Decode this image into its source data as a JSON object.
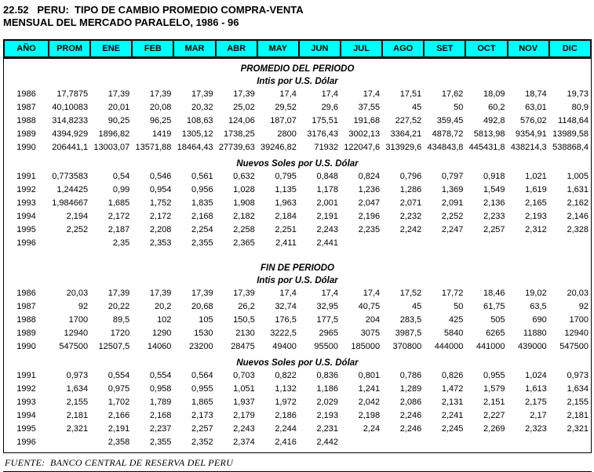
{
  "title": {
    "line1": "22.52   PERU:  TIPO DE CAMBIO PROMEDIO COMPRA-VENTA",
    "line2": "MENSUAL DEL MERCADO PARALELO, 1986 - 96"
  },
  "table": {
    "columns": [
      "AÑO",
      "PROM",
      "ENE",
      "FEB",
      "MAR",
      "ABR",
      "MAY",
      "JUN",
      "JUL",
      "AGO",
      "SET",
      "OCT",
      "NOV",
      "DIC"
    ],
    "sections": [
      {
        "heading": "PROMEDIO DEL PERIODO",
        "subheading": "Intis por U.S. Dólar",
        "rows": [
          {
            "year": "1986",
            "values": [
              "17,7875",
              "17,39",
              "17,39",
              "17,39",
              "17,39",
              "17,4",
              "17,4",
              "17,4",
              "17,51",
              "17,62",
              "18,09",
              "18,74",
              "19,73"
            ]
          },
          {
            "year": "1987",
            "values": [
              "40,10083",
              "20,01",
              "20,08",
              "20,32",
              "25,02",
              "29,52",
              "29,6",
              "37,55",
              "45",
              "50",
              "60,2",
              "63,01",
              "80,9"
            ]
          },
          {
            "year": "1988",
            "values": [
              "314,8233",
              "90,25",
              "96,25",
              "108,63",
              "124,06",
              "187,07",
              "175,51",
              "191,68",
              "227,52",
              "359,45",
              "492,8",
              "576,02",
              "1148,64"
            ]
          },
          {
            "year": "1989",
            "values": [
              "4394,929",
              "1896,82",
              "1419",
              "1305,12",
              "1738,25",
              "2800",
              "3176,43",
              "3002,13",
              "3364,21",
              "4878,72",
              "5813,98",
              "9354,91",
              "13989,58"
            ]
          },
          {
            "year": "1990",
            "values": [
              "206441,1",
              "13003,07",
              "13571,88",
              "18464,43",
              "27739,63",
              "39246,82",
              "71932",
              "122047,6",
              "313929,6",
              "434843,8",
              "445431,8",
              "438214,3",
              "538868,4"
            ]
          }
        ]
      },
      {
        "heading": "",
        "subheading": "Nuevos Soles por U.S. Dólar",
        "rows": [
          {
            "year": "1991",
            "values": [
              "0,773583",
              "0,54",
              "0,546",
              "0,561",
              "0,632",
              "0,795",
              "0,848",
              "0,824",
              "0,796",
              "0,797",
              "0,918",
              "1,021",
              "1,005"
            ]
          },
          {
            "year": "1992",
            "values": [
              "1,24425",
              "0,99",
              "0,954",
              "0,956",
              "1,028",
              "1,135",
              "1,178",
              "1,236",
              "1,286",
              "1,369",
              "1,549",
              "1,619",
              "1,631"
            ]
          },
          {
            "year": "1993",
            "values": [
              "1,984667",
              "1,685",
              "1,752",
              "1,835",
              "1,908",
              "1,963",
              "2,001",
              "2,047",
              "2,071",
              "2,091",
              "2,136",
              "2,165",
              "2,162"
            ]
          },
          {
            "year": "1994",
            "values": [
              "2,194",
              "2,172",
              "2,172",
              "2,168",
              "2,182",
              "2,184",
              "2,191",
              "2,196",
              "2,232",
              "2,252",
              "2,233",
              "2,193",
              "2,146"
            ]
          },
          {
            "year": "1995",
            "values": [
              "2,252",
              "2,187",
              "2,208",
              "2,254",
              "2,258",
              "2,251",
              "2,243",
              "2,235",
              "2,242",
              "2,247",
              "2,257",
              "2,312",
              "2,328"
            ]
          },
          {
            "year": "1996",
            "values": [
              "",
              "2,35",
              "2,353",
              "2,355",
              "2,365",
              "2,411",
              "2,441",
              "",
              "",
              "",
              "",
              "",
              ""
            ]
          }
        ]
      },
      {
        "heading": "FIN DE PERIODO",
        "subheading": "Intis por U.S. Dólar",
        "rows": [
          {
            "year": "1986",
            "values": [
              "20,03",
              "17,39",
              "17,39",
              "17,39",
              "17,39",
              "17,4",
              "17,4",
              "17,4",
              "17,52",
              "17,72",
              "18,46",
              "19,02",
              "20,03"
            ]
          },
          {
            "year": "1987",
            "values": [
              "92",
              "20,22",
              "20,2",
              "20,68",
              "26,2",
              "32,74",
              "32,95",
              "40,75",
              "45",
              "50",
              "61,75",
              "63,5",
              "92"
            ]
          },
          {
            "year": "1988",
            "values": [
              "1700",
              "89,5",
              "102",
              "105",
              "150,5",
              "176,5",
              "177,5",
              "204",
              "283,5",
              "425",
              "505",
              "690",
              "1700"
            ]
          },
          {
            "year": "1989",
            "values": [
              "12940",
              "1720",
              "1290",
              "1530",
              "2130",
              "3222,5",
              "2965",
              "3075",
              "3987,5",
              "5840",
              "6265",
              "11880",
              "12940"
            ]
          },
          {
            "year": "1990",
            "values": [
              "547500",
              "12507,5",
              "14060",
              "23200",
              "28475",
              "49400",
              "95500",
              "185000",
              "370800",
              "444000",
              "441000",
              "439000",
              "547500"
            ]
          }
        ]
      },
      {
        "heading": "",
        "subheading": "Nuevos Soles por U.S. Dólar",
        "rows": [
          {
            "year": "1991",
            "values": [
              "0,973",
              "0,554",
              "0,554",
              "0,564",
              "0,703",
              "0,822",
              "0,836",
              "0,801",
              "0,786",
              "0,826",
              "0,955",
              "1,024",
              "0,973"
            ]
          },
          {
            "year": "1992",
            "values": [
              "1,634",
              "0,975",
              "0,958",
              "0,955",
              "1,051",
              "1,132",
              "1,186",
              "1,241",
              "1,289",
              "1,472",
              "1,579",
              "1,613",
              "1,634"
            ]
          },
          {
            "year": "1993",
            "values": [
              "2,155",
              "1,702",
              "1,789",
              "1,865",
              "1,937",
              "1,972",
              "2,029",
              "2,042",
              "2,086",
              "2,131",
              "2,151",
              "2,175",
              "2,155"
            ]
          },
          {
            "year": "1994",
            "values": [
              "2,181",
              "2,166",
              "2,168",
              "2,173",
              "2,179",
              "2,186",
              "2,193",
              "2,198",
              "2,246",
              "2,241",
              "2,227",
              "2,17",
              "2,181"
            ]
          },
          {
            "year": "1995",
            "values": [
              "2,321",
              "2,191",
              "2,237",
              "2,257",
              "2,243",
              "2,244",
              "2,231",
              "2,24",
              "2,246",
              "2,245",
              "2,269",
              "2,323",
              "2,321"
            ]
          },
          {
            "year": "1996",
            "values": [
              "",
              "2,358",
              "2,355",
              "2,352",
              "2,374",
              "2,416",
              "2,442",
              "",
              "",
              "",
              "",
              "",
              ""
            ]
          }
        ]
      }
    ]
  },
  "footer": {
    "source": "FUENTE:  BANCO CENTRAL DE RESERVA DEL PERU"
  },
  "colors": {
    "header_bg": "#00FFFF",
    "border": "#000000",
    "text": "#000000",
    "background": "#FFFFFF"
  }
}
